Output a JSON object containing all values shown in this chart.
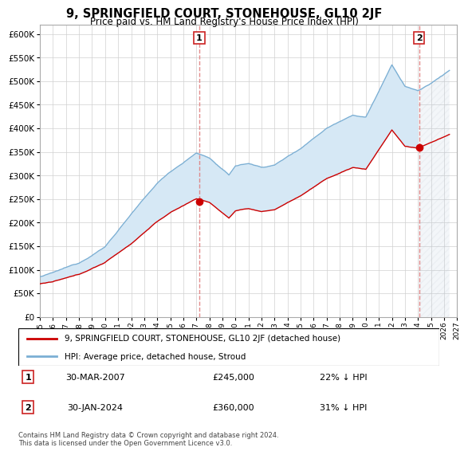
{
  "title": "9, SPRINGFIELD COURT, STONEHOUSE, GL10 2JF",
  "subtitle": "Price paid vs. HM Land Registry's House Price Index (HPI)",
  "legend_line1": "9, SPRINGFIELD COURT, STONEHOUSE, GL10 2JF (detached house)",
  "legend_line2": "HPI: Average price, detached house, Stroud",
  "transaction1_date": "30-MAR-2007",
  "transaction1_price": "£245,000",
  "transaction1_hpi": "22% ↓ HPI",
  "transaction1_year": 2007.23,
  "transaction1_value": 245000,
  "transaction2_date": "30-JAN-2024",
  "transaction2_price": "£360,000",
  "transaction2_hpi": "31% ↓ HPI",
  "transaction2_year": 2024.08,
  "transaction2_value": 360000,
  "footnote": "Contains HM Land Registry data © Crown copyright and database right 2024.\nThis data is licensed under the Open Government Licence v3.0.",
  "hpi_color": "#7bafd4",
  "price_color": "#cc0000",
  "fill_color": "#d6e8f5",
  "hatch_fill_color": "#e8e8e8",
  "ylim_min": 0,
  "ylim_max": 620000,
  "xmin": 1995.0,
  "xmax": 2027.0,
  "background_color": "#f5f5f5"
}
